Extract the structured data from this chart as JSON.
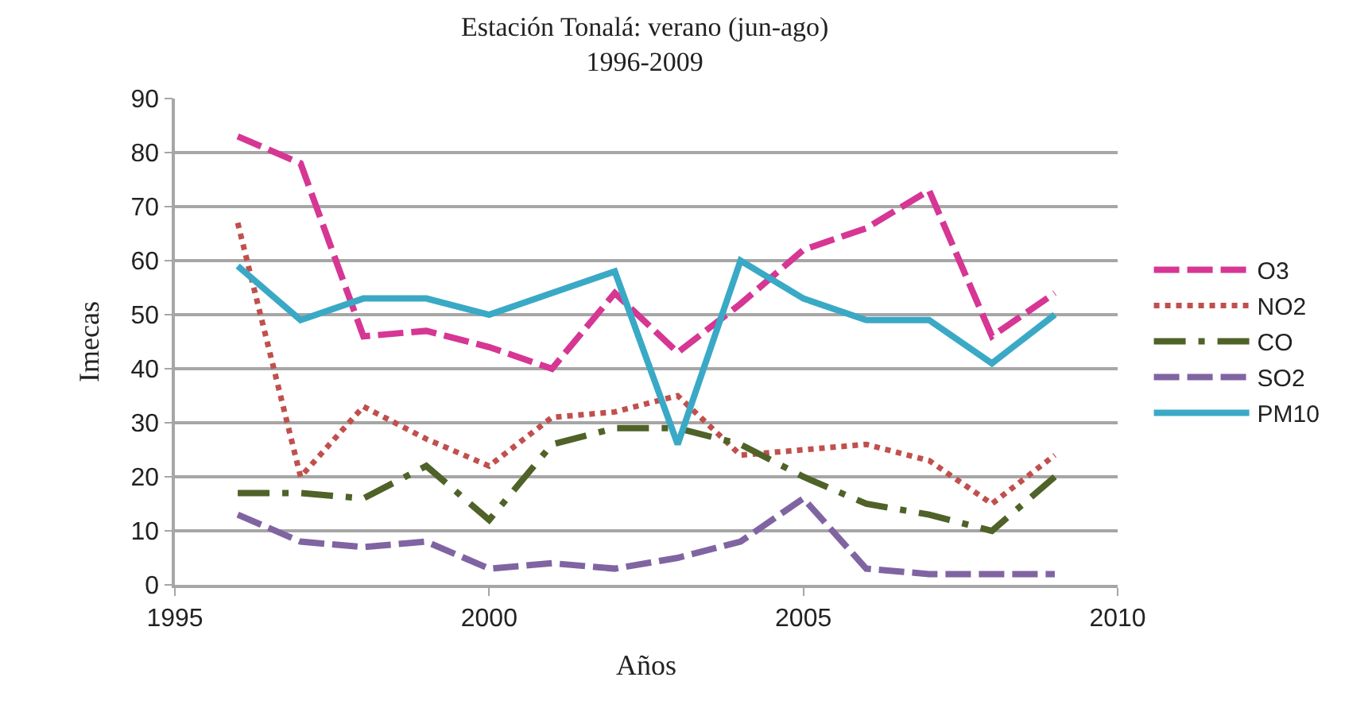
{
  "chart_data": {
    "type": "line",
    "title": "Estación Tonalá: verano (jun-ago)",
    "subtitle": "1996-2009",
    "xlabel": "Años",
    "ylabel": "Imecas",
    "x": [
      1996,
      1997,
      1998,
      1999,
      2000,
      2001,
      2002,
      2003,
      2004,
      2005,
      2006,
      2007,
      2008,
      2009
    ],
    "series": [
      {
        "name": "O3",
        "color": "#d63694",
        "line_style": "dashed",
        "values": [
          83,
          78,
          46,
          47,
          44,
          40,
          54,
          43,
          52,
          62,
          66,
          73,
          46,
          54
        ]
      },
      {
        "name": "NO2",
        "color": "#c0504d",
        "line_style": "dotted",
        "values": [
          67,
          20,
          33,
          27,
          22,
          31,
          32,
          35,
          24,
          25,
          26,
          23,
          15,
          24
        ]
      },
      {
        "name": "CO",
        "color": "#4f6228",
        "line_style": "dashdot",
        "values": [
          17,
          17,
          16,
          22,
          12,
          26,
          29,
          29,
          26,
          20,
          15,
          13,
          10,
          20
        ]
      },
      {
        "name": "SO2",
        "color": "#8064a2",
        "line_style": "dashed",
        "values": [
          13,
          8,
          7,
          8,
          3,
          4,
          3,
          5,
          8,
          16,
          3,
          2,
          2,
          2
        ]
      },
      {
        "name": "PM10",
        "color": "#3aa9c6",
        "line_style": "solid",
        "values": [
          59,
          49,
          53,
          53,
          50,
          54,
          58,
          26,
          60,
          53,
          49,
          49,
          41,
          50
        ]
      }
    ],
    "xlim": [
      1995,
      2010
    ],
    "xticks": [
      1995,
      2000,
      2005,
      2010
    ],
    "ylim": [
      0,
      90
    ],
    "yticks": [
      0,
      10,
      20,
      30,
      40,
      50,
      60,
      70,
      80,
      90
    ],
    "grid": "y",
    "legend": "right",
    "marker": "none"
  }
}
